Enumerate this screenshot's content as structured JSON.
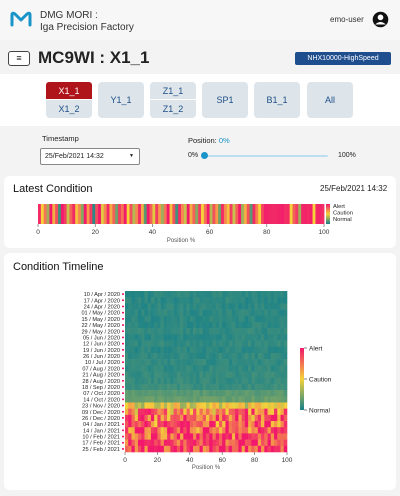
{
  "header": {
    "brand_line1": "DMG MORI :",
    "brand_line2": "Iga Precision Factory",
    "user_name": "emo-user"
  },
  "toolbar": {
    "menu_glyph": "≡",
    "machine_title": "MC9WI : X1_1",
    "model_badge": "NHX10000-HighSpeed"
  },
  "axes": {
    "x1": [
      "X1_1",
      "X1_2"
    ],
    "y1": "Y1_1",
    "z1": [
      "Z1_1",
      "Z1_2"
    ],
    "sp1": "SP1",
    "b1": "B1_1",
    "all": "All",
    "selected": "X1_1"
  },
  "controls": {
    "timestamp_label": "Timestamp",
    "timestamp_value": "25/Feb/2021 14:32",
    "position_label": "Position:",
    "position_value": "0%",
    "slider_min": "0%",
    "slider_max": "100%",
    "slider_fraction": 0
  },
  "colors": {
    "alert": "#f2186c",
    "caution": "#f5d23a",
    "normal": "#16808a",
    "accent": "#1994c8",
    "active_axis": "#b0141b",
    "badge": "#1f4e8f"
  },
  "latest": {
    "title": "Latest Condition",
    "timestamp": "25/Feb/2021 14:32"
  },
  "timeline": {
    "title": "Condition Timeline"
  },
  "chart_data": [
    {
      "type": "heatmap",
      "title": "Latest Condition",
      "xlabel": "Position %",
      "xlim": [
        0,
        100
      ],
      "xticks": [
        0,
        20,
        40,
        60,
        80,
        100
      ],
      "legend": [
        "Alert",
        "Caution",
        "Normal"
      ],
      "legend_placement": "right",
      "condition_scale": "0 = Normal, 0.5 = Caution, 1 = Alert",
      "values": [
        0.95,
        0.5,
        0.75,
        0.3,
        1,
        0.6,
        0.85,
        0.1,
        1,
        0.9,
        0.4,
        0.8,
        0.95,
        0.55,
        0.7,
        0.25,
        1,
        0.65,
        0.9,
        0.05,
        0.85,
        1,
        0.45,
        0.7,
        0.95,
        0.6,
        0.8,
        0.2,
        0.9,
        0.75,
        1,
        0.5,
        0.85,
        0.35,
        0.7,
        0.95,
        0.6,
        0.15,
        1,
        0.8,
        0.45,
        0.9,
        0.65,
        0.3,
        0.75,
        1,
        0.55,
        0.85,
        0.1,
        0.95,
        0.7,
        0.4,
        1,
        0.6,
        0.8,
        0.25,
        0.9,
        0.5,
        0.75,
        1,
        0.35,
        0.85,
        0.65,
        0.2,
        0.95,
        0.7,
        0.55,
        0.9,
        0.4,
        0.8,
        1,
        0.3,
        0.6,
        0.85,
        0.15,
        0.95,
        0.72,
        0.5,
        0.88,
        0.98,
        0.97,
        0.96,
        0.95,
        0.96,
        0.97,
        0.98,
        0.94,
        0.95,
        0.5,
        0.8,
        0.9,
        0.3,
        0.96,
        0.97,
        0.95,
        0.98,
        0.5,
        0.96,
        0.97,
        0.94
      ]
    },
    {
      "type": "heatmap",
      "title": "Condition Timeline",
      "xlabel": "Position %",
      "xlim": [
        0,
        100
      ],
      "xticks": [
        0,
        20,
        40,
        60,
        80,
        100
      ],
      "y_categories": [
        "10 / Apr / 2020",
        "17 / Apr / 2020",
        "24 / Apr / 2020",
        "01 / May / 2020",
        "15 / May / 2020",
        "22 / May / 2020",
        "29 / May / 2020",
        "05 / Jun / 2020",
        "12 / Jun / 2020",
        "19 / Jun / 2020",
        "26 / Jun / 2020",
        "10 / Jul / 2020",
        "07 / Aug / 2020",
        "21 / Aug / 2020",
        "28 / Aug / 2020",
        "18 / Sep / 2020",
        "07 / Oct / 2020",
        "14 / Oct / 2020",
        "23 / Nov / 2020",
        "09 / Dec / 2020",
        "26 / Dec / 2020",
        "04 / Jan / 2021",
        "14 / Jan / 2021",
        "10 / Feb / 2021",
        "17 / Feb / 2021",
        "25 / Feb / 2021"
      ],
      "colorbar": [
        "Alert",
        "Caution",
        "Normal"
      ],
      "colorbar_placement": "right",
      "row_levels": [
        0.05,
        0.05,
        0.05,
        0.05,
        0.05,
        0.05,
        0.06,
        0.05,
        0.06,
        0.05,
        0.06,
        0.06,
        0.06,
        0.07,
        0.07,
        0.08,
        0.15,
        0.18,
        0.45,
        0.75,
        0.82,
        0.85,
        0.88,
        0.9,
        0.92,
        0.95
      ]
    }
  ]
}
